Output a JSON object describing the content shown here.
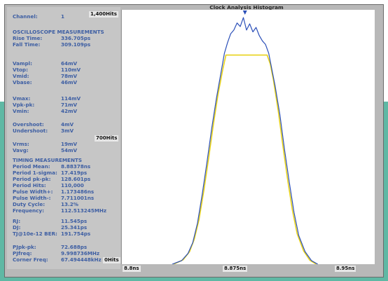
{
  "channel": {
    "label": "Channel:",
    "value": "1"
  },
  "osc_title": "OSCILLOSCOPE MEASUREMENTS",
  "osc": [
    {
      "k": "Rise Time:",
      "v": "336.705ps"
    },
    {
      "k": "Fall Time:",
      "v": "309.109ps"
    }
  ],
  "volts1": [
    {
      "k": "Vampl:",
      "v": "64mV"
    },
    {
      "k": "Vtop:",
      "v": "110mV"
    },
    {
      "k": "Vmid:",
      "v": "78mV"
    },
    {
      "k": "Vbase:",
      "v": "46mV"
    }
  ],
  "volts2": [
    {
      "k": "Vmax:",
      "v": "114mV"
    },
    {
      "k": "Vpk-pk:",
      "v": "71mV"
    },
    {
      "k": "Vmin:",
      "v": "42mV"
    }
  ],
  "shoot": [
    {
      "k": "Overshoot:",
      "v": "4mV"
    },
    {
      "k": "Undershoot:",
      "v": "3mV"
    }
  ],
  "rms": [
    {
      "k": "Vrms:",
      "v": "19mV"
    },
    {
      "k": "Vavg:",
      "v": "54mV"
    }
  ],
  "timing_title": "TIMING MEASUREMENTS",
  "timing": [
    {
      "k": "Period Mean:",
      "v": "8.88378ns"
    },
    {
      "k": "Period 1-sigma:",
      "v": "17.419ps"
    },
    {
      "k": "Period pk-pk:",
      "v": "128.601ps"
    },
    {
      "k": "Period Hits:",
      "v": "110,000"
    },
    {
      "k": "Pulse Width+:",
      "v": "1.173486ns"
    },
    {
      "k": "Pulse Width-:",
      "v": "7.711001ns"
    },
    {
      "k": "Duty Cycle:",
      "v": "13.2%"
    },
    {
      "k": "Frequency:",
      "v": "112.513245MHz"
    }
  ],
  "jitter": [
    {
      "k": "RJ:",
      "v": "11.545ps"
    },
    {
      "k": "DJ:",
      "v": "25.341ps"
    },
    {
      "k": "TJ@10e-12 BER:",
      "v": "191.754ps"
    }
  ],
  "pj": [
    {
      "k": "PJpk-pk:",
      "v": "72.688ps"
    },
    {
      "k": "PJfreq:",
      "v": "9.998736MHz"
    },
    {
      "k": "Corner Freq:",
      "v": "67.494448kHz"
    }
  ],
  "chart_data": {
    "type": "line",
    "title": "Clock Analysis Histogram",
    "y_tick_labels": [
      "1,400Hits",
      "700Hits",
      "0Hits"
    ],
    "x_tick_labels": [
      "8.8ns",
      "8.875ns",
      "8.95ns"
    ],
    "xlim": [
      8.8,
      8.95
    ],
    "ylim": [
      0,
      1400
    ],
    "series": [
      {
        "color": "#2b4fb8",
        "x": [
          8.83,
          8.836,
          8.84,
          8.843,
          8.846,
          8.849,
          8.852,
          8.855,
          8.858,
          8.861,
          8.863,
          8.865,
          8.867,
          8.869,
          8.871,
          8.873,
          8.875,
          8.877,
          8.879,
          8.881,
          8.883,
          8.885,
          8.887,
          8.889,
          8.891,
          8.893,
          8.895,
          8.898,
          8.901,
          8.904,
          8.907,
          8.91,
          8.914,
          8.918,
          8.922
        ],
        "y": [
          0,
          20,
          60,
          120,
          230,
          390,
          570,
          760,
          930,
          1080,
          1180,
          1240,
          1290,
          1310,
          1350,
          1330,
          1380,
          1310,
          1345,
          1300,
          1325,
          1280,
          1250,
          1230,
          1180,
          1090,
          1000,
          840,
          640,
          460,
          290,
          160,
          70,
          20,
          0
        ]
      },
      {
        "color": "#e8d21a",
        "x": [
          8.831,
          8.837,
          8.841,
          8.844,
          8.847,
          8.85,
          8.853,
          8.856,
          8.859,
          8.862,
          8.864,
          8.89,
          8.892,
          8.894,
          8.897,
          8.9,
          8.903,
          8.906,
          8.909,
          8.913,
          8.917,
          8.921
        ],
        "y": [
          0,
          25,
          70,
          140,
          250,
          410,
          590,
          780,
          950,
          1090,
          1170,
          1170,
          1120,
          1030,
          860,
          660,
          470,
          300,
          170,
          75,
          22,
          0
        ]
      }
    ],
    "marker": {
      "shape": "triangle-down",
      "x": 8.876,
      "color": "#2b4fb8"
    }
  }
}
